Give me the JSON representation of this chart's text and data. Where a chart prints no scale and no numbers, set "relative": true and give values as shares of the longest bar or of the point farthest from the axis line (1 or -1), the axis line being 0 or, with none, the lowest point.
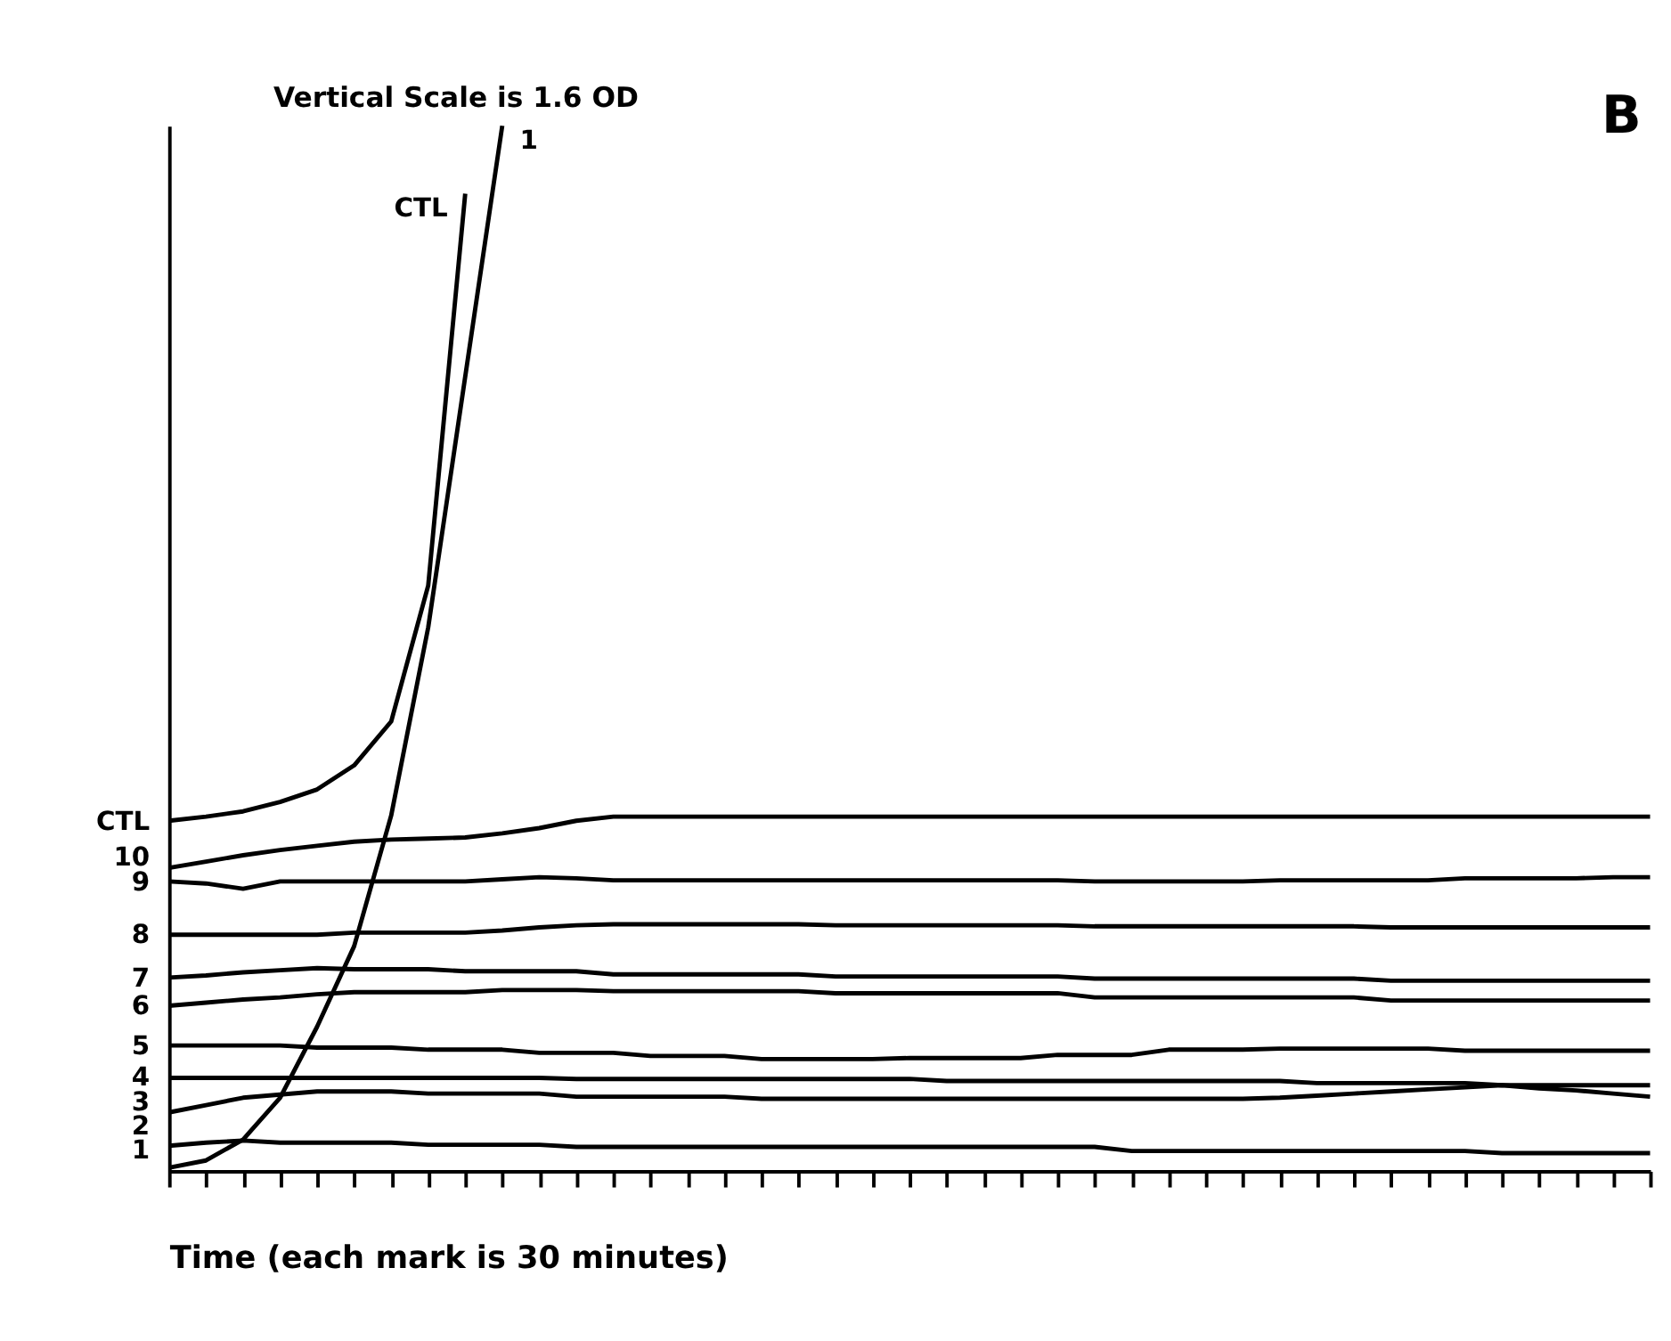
{
  "chart_data": {
    "type": "line",
    "relative": true,
    "title": "Vertical Scale is 1.6 OD",
    "xlabel": "Time (each mark is 30 minutes)",
    "annotations": [
      "B"
    ],
    "categories": [
      null,
      null,
      null,
      null,
      null,
      null,
      null,
      null,
      null,
      null,
      null,
      null,
      null,
      null,
      null,
      null,
      null,
      null,
      null,
      null,
      null,
      null,
      null,
      null,
      null,
      null,
      null,
      null,
      null,
      null,
      null,
      null,
      null,
      null,
      null,
      null,
      null,
      null,
      null,
      null,
      null
    ],
    "grid": false,
    "legend": false,
    "marker": "none",
    "line_style": "solid",
    "series": [
      {
        "name": "CTL",
        "color": "#000000",
        "values": [
          0.335,
          0.339,
          0.344,
          0.353,
          0.365,
          0.388,
          0.43,
          0.56,
          0.935,
          null,
          null,
          null,
          null,
          null,
          null,
          null,
          null,
          null,
          null,
          null,
          null,
          null,
          null,
          null,
          null,
          null,
          null,
          null,
          null,
          null,
          null,
          null,
          null,
          null,
          null,
          null,
          null,
          null,
          null,
          null,
          null
        ]
      },
      {
        "name": "10",
        "color": "#000000",
        "values": [
          0.29,
          0.296,
          0.302,
          0.307,
          0.311,
          0.315,
          0.317,
          0.318,
          0.319,
          0.323,
          0.328,
          0.335,
          0.339,
          0.339,
          0.339,
          0.339,
          0.339,
          0.339,
          0.339,
          0.339,
          0.339,
          0.339,
          0.339,
          0.339,
          0.339,
          0.339,
          0.339,
          0.339,
          0.339,
          0.339,
          0.339,
          0.339,
          0.339,
          0.339,
          0.339,
          0.339,
          0.339,
          0.339,
          0.339,
          0.339,
          0.339
        ]
      },
      {
        "name": "9",
        "color": "#000000",
        "values": [
          0.277,
          0.275,
          0.27,
          0.277,
          0.277,
          0.277,
          0.277,
          0.277,
          0.277,
          0.279,
          0.281,
          0.28,
          0.278,
          0.278,
          0.278,
          0.278,
          0.278,
          0.278,
          0.278,
          0.278,
          0.278,
          0.278,
          0.278,
          0.278,
          0.278,
          0.277,
          0.277,
          0.277,
          0.277,
          0.277,
          0.278,
          0.278,
          0.278,
          0.278,
          0.278,
          0.28,
          0.28,
          0.28,
          0.28,
          0.281,
          0.281
        ]
      },
      {
        "name": "8",
        "color": "#000000",
        "values": [
          0.226,
          0.226,
          0.226,
          0.226,
          0.226,
          0.228,
          0.228,
          0.228,
          0.228,
          0.23,
          0.233,
          0.235,
          0.236,
          0.236,
          0.236,
          0.236,
          0.236,
          0.236,
          0.235,
          0.235,
          0.235,
          0.235,
          0.235,
          0.235,
          0.235,
          0.234,
          0.234,
          0.234,
          0.234,
          0.234,
          0.234,
          0.234,
          0.234,
          0.233,
          0.233,
          0.233,
          0.233,
          0.233,
          0.233,
          0.233,
          0.233
        ]
      },
      {
        "name": "7",
        "color": "#000000",
        "values": [
          0.185,
          0.187,
          0.19,
          0.192,
          0.194,
          0.193,
          0.193,
          0.193,
          0.191,
          0.191,
          0.191,
          0.191,
          0.188,
          0.188,
          0.188,
          0.188,
          0.188,
          0.188,
          0.186,
          0.186,
          0.186,
          0.186,
          0.186,
          0.186,
          0.186,
          0.184,
          0.184,
          0.184,
          0.184,
          0.184,
          0.184,
          0.184,
          0.184,
          0.182,
          0.182,
          0.182,
          0.182,
          0.182,
          0.182,
          0.182,
          0.182
        ]
      },
      {
        "name": "6",
        "color": "#000000",
        "values": [
          0.158,
          0.161,
          0.164,
          0.166,
          0.169,
          0.171,
          0.171,
          0.171,
          0.171,
          0.173,
          0.173,
          0.173,
          0.172,
          0.172,
          0.172,
          0.172,
          0.172,
          0.172,
          0.17,
          0.17,
          0.17,
          0.17,
          0.17,
          0.17,
          0.17,
          0.166,
          0.166,
          0.166,
          0.166,
          0.166,
          0.166,
          0.166,
          0.166,
          0.163,
          0.163,
          0.163,
          0.163,
          0.163,
          0.163,
          0.163,
          0.163
        ]
      },
      {
        "name": "5",
        "color": "#000000",
        "values": [
          0.12,
          0.12,
          0.12,
          0.12,
          0.118,
          0.118,
          0.118,
          0.116,
          0.116,
          0.116,
          0.113,
          0.113,
          0.113,
          0.11,
          0.11,
          0.11,
          0.107,
          0.107,
          0.107,
          0.107,
          0.108,
          0.108,
          0.108,
          0.108,
          0.111,
          0.111,
          0.111,
          0.116,
          0.116,
          0.116,
          0.117,
          0.117,
          0.117,
          0.117,
          0.117,
          0.115,
          0.115,
          0.115,
          0.115,
          0.115,
          0.115
        ]
      },
      {
        "name": "4",
        "color": "#000000",
        "values": [
          0.089,
          0.089,
          0.089,
          0.089,
          0.089,
          0.089,
          0.089,
          0.089,
          0.089,
          0.089,
          0.089,
          0.088,
          0.088,
          0.088,
          0.088,
          0.088,
          0.088,
          0.088,
          0.088,
          0.088,
          0.088,
          0.086,
          0.086,
          0.086,
          0.086,
          0.086,
          0.086,
          0.086,
          0.086,
          0.086,
          0.086,
          0.084,
          0.084,
          0.084,
          0.084,
          0.084,
          0.082,
          0.082,
          0.082,
          0.082,
          0.082
        ]
      },
      {
        "name": "3",
        "color": "#000000",
        "values": [
          0.056,
          0.063,
          0.07,
          0.073,
          0.076,
          0.076,
          0.076,
          0.074,
          0.074,
          0.074,
          0.074,
          0.071,
          0.071,
          0.071,
          0.071,
          0.071,
          0.069,
          0.069,
          0.069,
          0.069,
          0.069,
          0.069,
          0.069,
          0.069,
          0.069,
          0.069,
          0.069,
          0.069,
          0.069,
          0.069,
          0.07,
          0.072,
          0.074,
          0.076,
          0.078,
          0.08,
          0.082,
          0.079,
          0.077,
          0.074,
          0.071
        ]
      },
      {
        "name": "2",
        "color": "#000000",
        "values": [
          0.024,
          0.027,
          0.029,
          0.027,
          0.027,
          0.027,
          0.027,
          0.025,
          0.025,
          0.025,
          0.025,
          0.023,
          0.023,
          0.023,
          0.023,
          0.023,
          0.023,
          0.023,
          0.023,
          0.023,
          0.023,
          0.023,
          0.023,
          0.023,
          0.023,
          0.023,
          0.019,
          0.019,
          0.019,
          0.019,
          0.019,
          0.019,
          0.019,
          0.019,
          0.019,
          0.019,
          0.017,
          0.017,
          0.017,
          0.017,
          0.017
        ]
      },
      {
        "name": "1",
        "color": "#000000",
        "values": [
          0.003,
          0.01,
          0.03,
          0.07,
          0.138,
          0.215,
          0.34,
          0.52,
          0.76,
          1,
          null,
          null,
          null,
          null,
          null,
          null,
          null,
          null,
          null,
          null,
          null,
          null,
          null,
          null,
          null,
          null,
          null,
          null,
          null,
          null,
          null,
          null,
          null,
          null,
          null,
          null,
          null,
          null,
          null,
          null,
          null
        ]
      }
    ]
  }
}
